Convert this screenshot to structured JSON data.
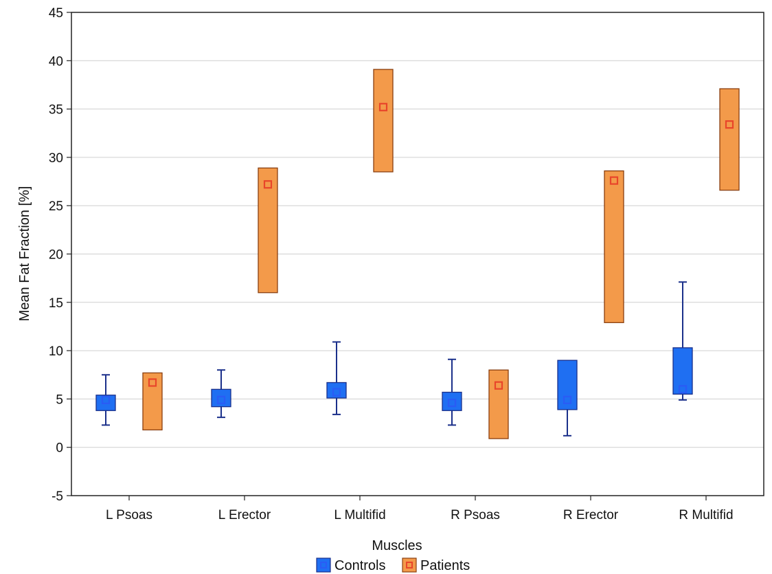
{
  "chart_data": {
    "type": "box",
    "title": "",
    "xlabel": "Muscles",
    "ylabel": "Mean Fat Fraction [%]",
    "ylim": [
      -5,
      45
    ],
    "yticks": [
      -5,
      0,
      5,
      10,
      15,
      20,
      25,
      30,
      35,
      40,
      45
    ],
    "grid": true,
    "legend_position": "bottom-center",
    "categories": [
      "L Psoas",
      "L Erector",
      "L Multifid",
      "R Psoas",
      "R Erector",
      "R Multifid"
    ],
    "series": [
      {
        "name": "Controls",
        "color": "#1f6ff2",
        "edge_color": "#1a2f8a",
        "marker_color": "#2a5cf5",
        "mean": [
          4.9,
          4.9,
          5.7,
          4.6,
          4.9,
          6.0
        ],
        "box_low": [
          3.8,
          4.2,
          5.1,
          3.8,
          3.9,
          5.5
        ],
        "box_high": [
          5.4,
          6.0,
          6.7,
          5.7,
          9.0,
          10.3
        ],
        "whisker_low": [
          2.3,
          3.1,
          3.4,
          2.3,
          1.2,
          4.9
        ],
        "whisker_high": [
          7.5,
          8.0,
          10.9,
          9.1,
          null,
          17.1
        ]
      },
      {
        "name": "Patients",
        "color": "#f39a4a",
        "edge_color": "#8a3f10",
        "marker_color": "#e8452a",
        "mean": [
          6.7,
          27.2,
          35.2,
          6.4,
          27.6,
          33.4
        ],
        "box_low": [
          1.8,
          16.0,
          28.5,
          0.9,
          12.9,
          26.6
        ],
        "box_high": [
          7.7,
          28.9,
          39.1,
          8.0,
          28.6,
          37.1
        ],
        "whisker_low": [
          null,
          null,
          null,
          null,
          null,
          null
        ],
        "whisker_high": [
          null,
          null,
          null,
          null,
          null,
          null
        ]
      }
    ]
  }
}
